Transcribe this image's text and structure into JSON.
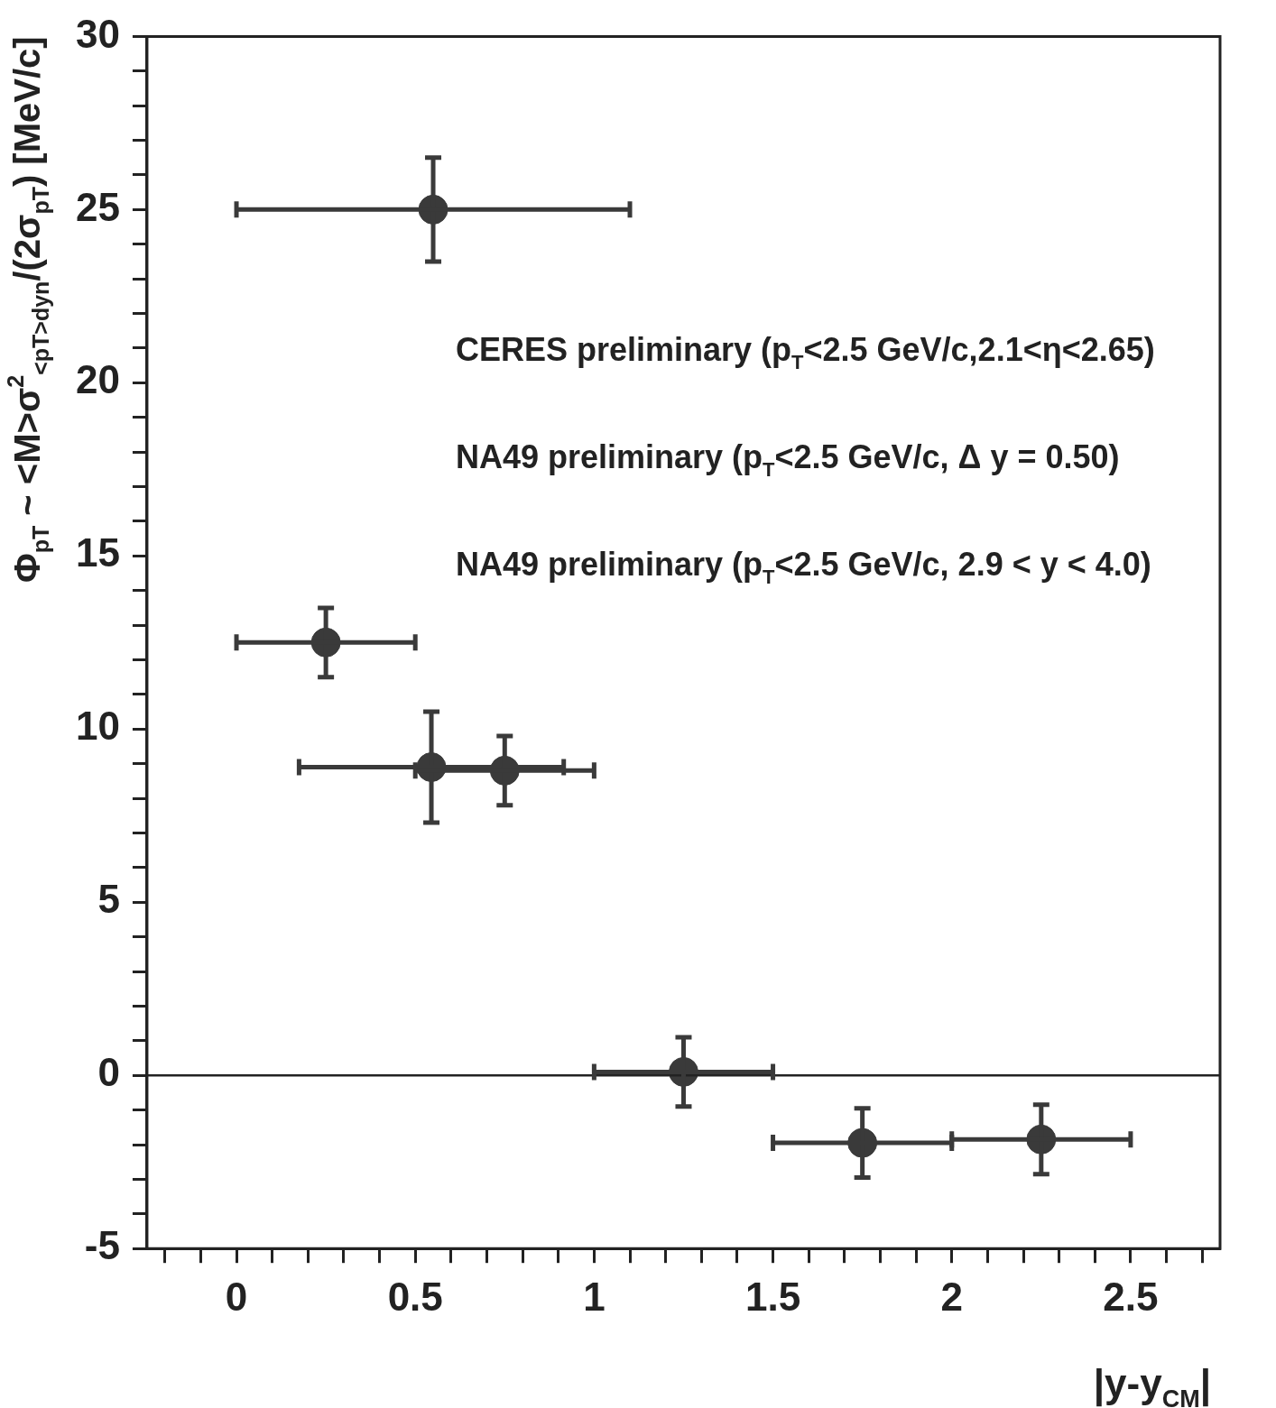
{
  "chart_data": {
    "type": "scatter",
    "xlabel": "|y-y$_{CM}$|",
    "ylabel": "Φ$_{pT}$ ~ <M>σ$^{2}$$_{<pT>dyn}$/(2σ$_{pT}$) [MeV/c]",
    "annotations": [
      "CERES preliminary (p$_{T}$<2.5 GeV/c,2.1<η<2.65)",
      "NA49 preliminary (p$_{T}$<2.5 GeV/c, Δ y = 0.50)",
      "NA49 preliminary (p$_{T}$<2.5 GeV/c, 2.9 < y < 4.0)"
    ],
    "series": [
      {
        "color": "#3a3a3a",
        "x": [
          0.55,
          0.25,
          0.545,
          0.75,
          1.25,
          1.75,
          2.25
        ],
        "values": [
          25,
          12.5,
          8.9,
          8.8,
          0.1,
          -1.95,
          -1.85
        ],
        "errors": [
          1.5,
          1,
          1.6,
          1,
          1,
          1,
          1
        ],
        "xerrors": [
          0.55,
          0.25,
          0.37,
          0.25,
          0.25,
          0.25,
          0.25
        ]
      }
    ],
    "xlim": [
      -0.25,
      2.75
    ],
    "xticks": [
      {
        "value": -0.2,
        "label": null
      },
      {
        "value": -0.1,
        "label": null
      },
      0,
      {
        "value": 0.1,
        "label": null
      },
      {
        "value": 0.2,
        "label": null
      },
      {
        "value": 0.3,
        "label": null
      },
      {
        "value": 0.4,
        "label": null
      },
      0.5,
      {
        "value": 0.6,
        "label": null
      },
      {
        "value": 0.7,
        "label": null
      },
      {
        "value": 0.8,
        "label": null
      },
      {
        "value": 0.9,
        "label": null
      },
      1,
      {
        "value": 1.1,
        "label": null
      },
      {
        "value": 1.2,
        "label": null
      },
      {
        "value": 1.3,
        "label": null
      },
      {
        "value": 1.4,
        "label": null
      },
      1.5,
      {
        "value": 1.6,
        "label": null
      },
      {
        "value": 1.7,
        "label": null
      },
      {
        "value": 1.8,
        "label": null
      },
      {
        "value": 1.9,
        "label": null
      },
      2,
      {
        "value": 2.1,
        "label": null
      },
      {
        "value": 2.2,
        "label": null
      },
      {
        "value": 2.3,
        "label": null
      },
      {
        "value": 2.4,
        "label": null
      },
      2.5,
      {
        "value": 2.6,
        "label": null
      },
      {
        "value": 2.7,
        "label": null
      }
    ],
    "ylim": [
      -5,
      30
    ],
    "yticks": [
      -5,
      {
        "value": -4,
        "label": null
      },
      {
        "value": -3,
        "label": null
      },
      {
        "value": -2,
        "label": null
      },
      {
        "value": -1,
        "label": null
      },
      0,
      {
        "value": 1,
        "label": null
      },
      {
        "value": 2,
        "label": null
      },
      {
        "value": 3,
        "label": null
      },
      {
        "value": 4,
        "label": null
      },
      5,
      {
        "value": 6,
        "label": null
      },
      {
        "value": 7,
        "label": null
      },
      {
        "value": 8,
        "label": null
      },
      {
        "value": 9,
        "label": null
      },
      10,
      {
        "value": 11,
        "label": null
      },
      {
        "value": 12,
        "label": null
      },
      {
        "value": 13,
        "label": null
      },
      {
        "value": 14,
        "label": null
      },
      15,
      {
        "value": 16,
        "label": null
      },
      {
        "value": 17,
        "label": null
      },
      {
        "value": 18,
        "label": null
      },
      {
        "value": 19,
        "label": null
      },
      20,
      {
        "value": 21,
        "label": null
      },
      {
        "value": 22,
        "label": null
      },
      {
        "value": 23,
        "label": null
      },
      {
        "value": 24,
        "label": null
      },
      25,
      {
        "value": 26,
        "label": null
      },
      {
        "value": 27,
        "label": null
      },
      {
        "value": 28,
        "label": null
      },
      {
        "value": 29,
        "label": null
      },
      30
    ],
    "ref_lines": [
      {
        "axis": "y",
        "value": 0
      }
    ],
    "marker": "circle",
    "grid": false,
    "legend": false
  }
}
